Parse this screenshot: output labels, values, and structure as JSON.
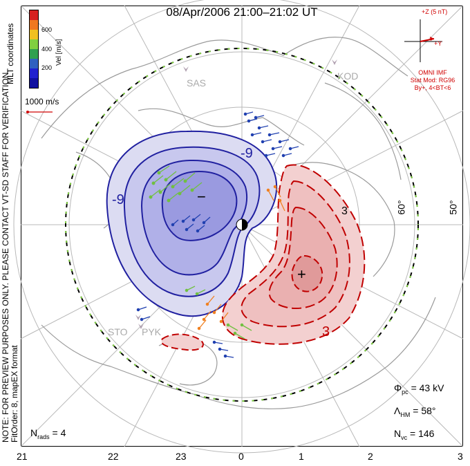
{
  "title": "08/Apr/2006 21:00–21:02 UT",
  "side_note": {
    "line1": "NOTE: FOR PREVIEW PURPOSES ONLY. PLEASE CONTACT VT-SD STAFF FOR VERIFICATION.",
    "line2": "FitOrder: 8, mapEX format"
  },
  "coords_label": "MLT coordinates",
  "colorbar": {
    "label": "Vel [m/s]",
    "ticks": [
      "600",
      "400",
      "200"
    ],
    "colors": [
      "#d62020",
      "#f07820",
      "#f0c020",
      "#80d040",
      "#30a050",
      "#3060c0",
      "#2020d0",
      "#1010a0"
    ]
  },
  "reference_vector": "1000 m/s",
  "imf": {
    "z_label": "+Z (5 nT)",
    "y_label": "+Y",
    "source": "OMNI IMF",
    "model": "Stat Mod: RG96",
    "condition": "By+, 4<BT<6"
  },
  "stats": {
    "phi_pc_symbol": "Φ",
    "phi_pc_sub": "pc",
    "phi_pc_value": "= 43 kV",
    "lambda_hm_symbol": "Λ",
    "lambda_hm_sub": "HM",
    "lambda_hm_value": "= 58°",
    "n_vc_symbol": "N",
    "n_vc_sub": "vc",
    "n_vc_value": "= 146"
  },
  "nrads": {
    "symbol": "N",
    "sub": "rads",
    "value": "= 4"
  },
  "mlt_ticks": [
    "21",
    "22",
    "23",
    "0",
    "1",
    "2",
    "3"
  ],
  "lat_labels": [
    "60°",
    "50°"
  ],
  "stations": [
    "SAS",
    "KOD",
    "STO",
    "PYK"
  ],
  "contours": {
    "negative_label": "-9",
    "positive_label": "3",
    "minus_marker": "−",
    "plus_marker": "+",
    "hidden_label": "3"
  },
  "colors": {
    "negative": "#2020a0",
    "negative_fill": "#8a8ae0",
    "positive": "#c00000",
    "positive_fill": "#f0a8a8",
    "hm_boundary_dash": "#80d040",
    "grid": "#b0b0b0",
    "coast": "#9a9a9a"
  }
}
